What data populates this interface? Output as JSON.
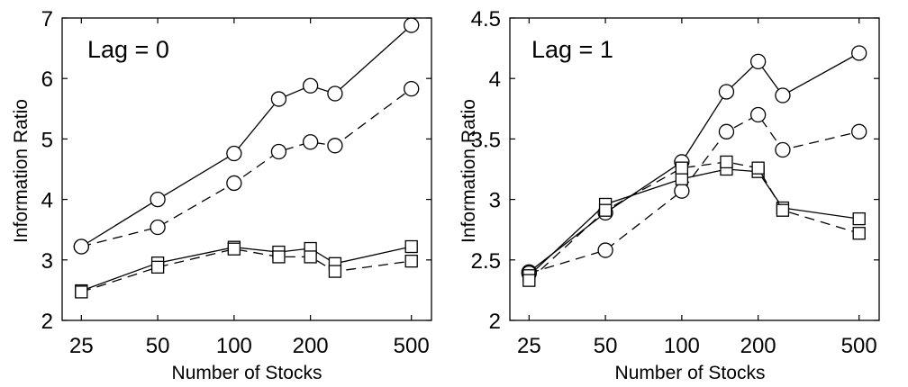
{
  "chart_data": [
    {
      "type": "line",
      "xscale": "log",
      "annotation": "Lag = 0",
      "xlabel": "Number of Stocks",
      "ylabel": "Information Ratio",
      "xlim": [
        21,
        600
      ],
      "ylim": [
        2,
        7
      ],
      "xticks": [
        25,
        50,
        100,
        200,
        500
      ],
      "yticks": [
        2,
        3,
        4,
        5,
        6,
        7
      ],
      "grid": false,
      "legend": "none",
      "x": [
        25,
        50,
        100,
        150,
        200,
        250,
        500
      ],
      "series": [
        {
          "marker": "circle",
          "line": "solid",
          "values": [
            3.22,
            4.0,
            4.76,
            5.66,
            5.88,
            5.75,
            6.88
          ]
        },
        {
          "marker": "circle",
          "line": "dashed",
          "values": [
            3.22,
            3.54,
            4.27,
            4.79,
            4.95,
            4.89,
            5.83
          ]
        },
        {
          "marker": "square",
          "line": "solid",
          "values": [
            2.49,
            2.95,
            3.21,
            3.13,
            3.19,
            2.94,
            3.22
          ]
        },
        {
          "marker": "square",
          "line": "dashed",
          "values": [
            2.47,
            2.88,
            3.18,
            3.05,
            3.05,
            2.81,
            2.98
          ]
        }
      ]
    },
    {
      "type": "line",
      "xscale": "log",
      "annotation": "Lag = 1",
      "xlabel": "Number of Stocks",
      "ylabel": "Information Ratio",
      "xlim": [
        21,
        600
      ],
      "ylim": [
        2,
        4.5
      ],
      "xticks": [
        25,
        50,
        100,
        200,
        500
      ],
      "yticks": [
        2,
        2.5,
        3,
        3.5,
        4,
        4.5
      ],
      "grid": false,
      "legend": "none",
      "x": [
        25,
        50,
        100,
        150,
        200,
        250,
        500
      ],
      "series": [
        {
          "marker": "circle",
          "line": "solid",
          "values": [
            2.4,
            2.89,
            3.31,
            3.89,
            4.14,
            3.86,
            4.21
          ]
        },
        {
          "marker": "circle",
          "line": "dashed",
          "values": [
            2.39,
            2.58,
            3.07,
            3.56,
            3.7,
            3.41,
            3.56
          ]
        },
        {
          "marker": "square",
          "line": "solid",
          "values": [
            2.37,
            2.96,
            3.17,
            3.25,
            3.23,
            2.93,
            2.84
          ]
        },
        {
          "marker": "square",
          "line": "dashed",
          "values": [
            2.33,
            2.91,
            3.26,
            3.31,
            3.26,
            2.91,
            2.72
          ]
        }
      ]
    }
  ]
}
